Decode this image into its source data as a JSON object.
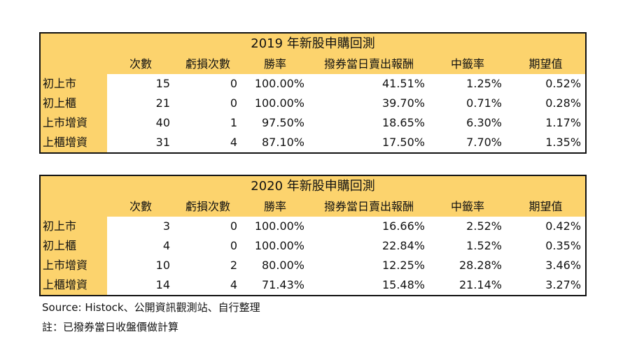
{
  "tables": [
    {
      "title": "2019 年新股申購回測",
      "headers": [
        "",
        "次數",
        "虧損次數",
        "勝率",
        "撥券當日賣出報酬",
        "中籤率",
        "期望值"
      ],
      "rows": [
        {
          "label": "初上市",
          "cells": [
            "15",
            "0",
            "100.00%",
            "41.51%",
            "1.25%",
            "0.52%"
          ]
        },
        {
          "label": "初上櫃",
          "cells": [
            "21",
            "0",
            "100.00%",
            "39.70%",
            "0.71%",
            "0.28%"
          ]
        },
        {
          "label": "上市增資",
          "cells": [
            "40",
            "1",
            "97.50%",
            "18.65%",
            "6.30%",
            "1.17%"
          ]
        },
        {
          "label": "上櫃增資",
          "cells": [
            "31",
            "4",
            "87.10%",
            "17.50%",
            "7.70%",
            "1.35%"
          ]
        }
      ]
    },
    {
      "title": "2020 年新股申購回測",
      "headers": [
        "",
        "次數",
        "虧損次數",
        "勝率",
        "撥券當日賣出報酬",
        "中籤率",
        "期望值"
      ],
      "rows": [
        {
          "label": "初上市",
          "cells": [
            "3",
            "0",
            "100.00%",
            "16.66%",
            "2.52%",
            "0.42%"
          ]
        },
        {
          "label": "初上櫃",
          "cells": [
            "4",
            "0",
            "100.00%",
            "22.84%",
            "1.52%",
            "0.35%"
          ]
        },
        {
          "label": "上市增資",
          "cells": [
            "10",
            "2",
            "80.00%",
            "12.25%",
            "28.28%",
            "3.46%"
          ]
        },
        {
          "label": "上櫃增資",
          "cells": [
            "14",
            "4",
            "71.43%",
            "15.48%",
            "21.14%",
            "3.27%"
          ]
        }
      ]
    }
  ],
  "notes": {
    "source": "Source: Histock、公開資訊觀測站、自行整理",
    "note": "註：已撥券當日收盤價做計算"
  },
  "colors": {
    "header_fill": "#fcd36d",
    "border": "#111111",
    "cell_fill": "#ffffff"
  }
}
